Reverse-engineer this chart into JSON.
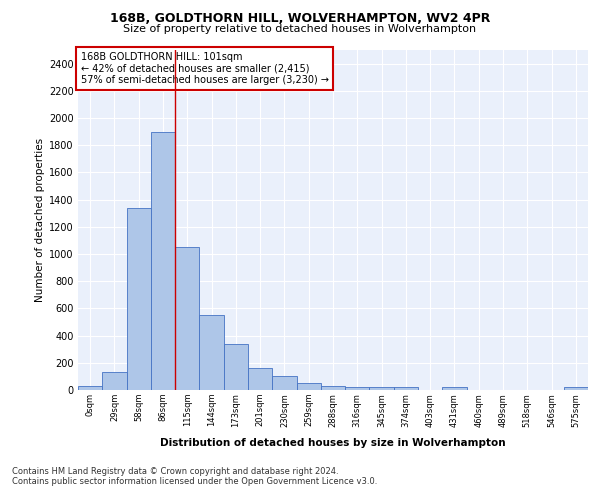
{
  "title1": "168B, GOLDTHORN HILL, WOLVERHAMPTON, WV2 4PR",
  "title2": "Size of property relative to detached houses in Wolverhampton",
  "xlabel": "Distribution of detached houses by size in Wolverhampton",
  "ylabel": "Number of detached properties",
  "categories": [
    "0sqm",
    "29sqm",
    "58sqm",
    "86sqm",
    "115sqm",
    "144sqm",
    "173sqm",
    "201sqm",
    "230sqm",
    "259sqm",
    "288sqm",
    "316sqm",
    "345sqm",
    "374sqm",
    "403sqm",
    "431sqm",
    "460sqm",
    "489sqm",
    "518sqm",
    "546sqm",
    "575sqm"
  ],
  "values": [
    30,
    130,
    1340,
    1900,
    1050,
    550,
    335,
    165,
    100,
    55,
    30,
    25,
    20,
    20,
    0,
    20,
    0,
    0,
    0,
    0,
    20
  ],
  "bar_color": "#aec6e8",
  "bar_edge_color": "#4472c4",
  "vline_x_index": 3,
  "vline_color": "#cc0000",
  "annotation_text": "168B GOLDTHORN HILL: 101sqm\n← 42% of detached houses are smaller (2,415)\n57% of semi-detached houses are larger (3,230) →",
  "annotation_box_color": "#ffffff",
  "annotation_box_edge": "#cc0000",
  "ylim": [
    0,
    2500
  ],
  "yticks": [
    0,
    200,
    400,
    600,
    800,
    1000,
    1200,
    1400,
    1600,
    1800,
    2000,
    2200,
    2400
  ],
  "background_color": "#eaf0fb",
  "footer1": "Contains HM Land Registry data © Crown copyright and database right 2024.",
  "footer2": "Contains public sector information licensed under the Open Government Licence v3.0."
}
